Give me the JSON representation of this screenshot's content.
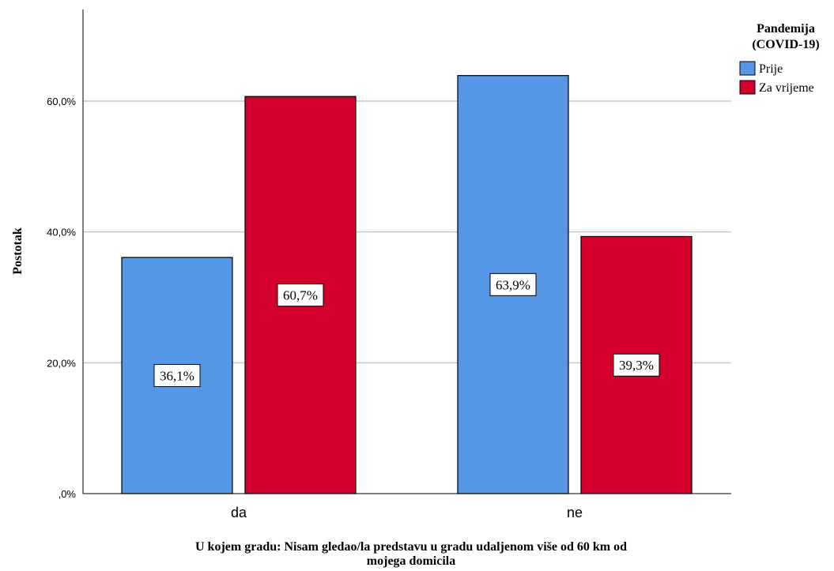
{
  "chart_data": {
    "type": "bar",
    "categories": [
      "da",
      "ne"
    ],
    "series": [
      {
        "name": "Prije",
        "values": [
          36.1,
          63.9
        ],
        "color": "#5597e6"
      },
      {
        "name": "Za vrijeme",
        "values": [
          60.7,
          39.3
        ],
        "color": "#d3002d"
      }
    ],
    "data_labels": [
      [
        "36,1%",
        "63,9%"
      ],
      [
        "60,7%",
        "39,3%"
      ]
    ],
    "ylabel": "Postotak",
    "xlabel_lines": [
      "U kojem gradu: Nisam gledao/la predstavu u gradu udaljenom više od 60 km od",
      "mojega domicila"
    ],
    "ylim": [
      0,
      74
    ],
    "yticks": [
      0,
      20,
      40,
      60
    ],
    "ytick_labels": [
      ",0%",
      "20,0%",
      "40,0%",
      "60,0%"
    ],
    "grid": true,
    "legend": {
      "title_lines": [
        "Pandemija",
        "(COVID-19)"
      ],
      "position": "top-right"
    }
  }
}
